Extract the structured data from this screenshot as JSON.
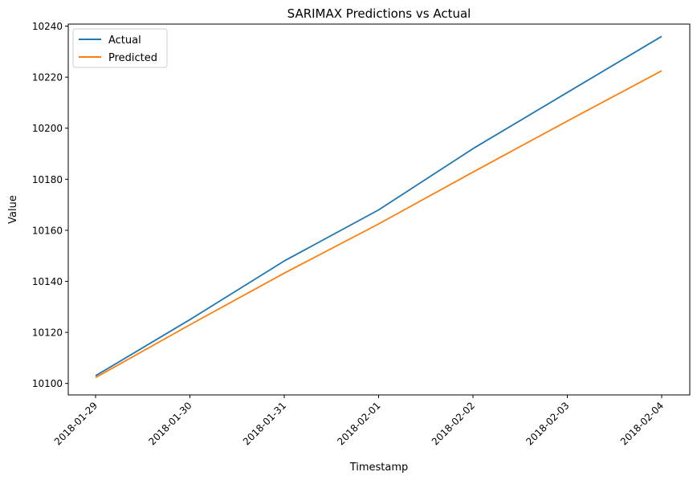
{
  "chart_data": {
    "type": "line",
    "title": "SARIMAX Predictions vs Actual",
    "xlabel": "Timestamp",
    "ylabel": "Value",
    "x": [
      "2018-01-29",
      "2018-01-30",
      "2018-01-31",
      "2018-02-01",
      "2018-02-02",
      "2018-02-03",
      "2018-02-04"
    ],
    "yticks": [
      10100,
      10120,
      10140,
      10160,
      10180,
      10200,
      10220,
      10240
    ],
    "ylim": [
      10095.5,
      10240.8
    ],
    "grid": false,
    "legend": "top-left",
    "series": [
      {
        "name": "Actual",
        "color": "#1f77b4",
        "values": [
          10103,
          10125,
          10148,
          10168,
          10192,
          10214,
          10236
        ]
      },
      {
        "name": "Predicted",
        "color": "#ff7f0e",
        "values": [
          10102.3,
          10123,
          10143.2,
          10162.5,
          10182.8,
          10202.8,
          10222.5
        ]
      }
    ]
  }
}
